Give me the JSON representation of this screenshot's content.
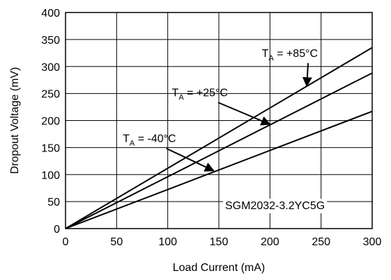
{
  "chart_data": {
    "type": "line",
    "xlabel": "Load Current (mA)",
    "ylabel": "Dropout Voltage (mV)",
    "xlim": [
      0,
      300
    ],
    "ylim": [
      0,
      400
    ],
    "xticks": [
      0,
      50,
      100,
      150,
      200,
      250,
      300
    ],
    "yticks": [
      0,
      50,
      100,
      150,
      200,
      250,
      300,
      350,
      400
    ],
    "grid": true,
    "annotation": "SGM2032-3.2YC5G",
    "series": [
      {
        "name_prefix": "T",
        "name_sub": "A",
        "name_suffix": " = +85°C",
        "x": [
          0,
          300
        ],
        "y": [
          0,
          335
        ],
        "label_x": 192,
        "label_y": 318,
        "arrow_x": 236,
        "arrow_y": 264
      },
      {
        "name_prefix": "T",
        "name_sub": "A",
        "name_suffix": " = +25°C",
        "x": [
          0,
          300
        ],
        "y": [
          0,
          288
        ],
        "label_x": 104,
        "label_y": 245,
        "arrow_x": 200,
        "arrow_y": 193
      },
      {
        "name_prefix": "T",
        "name_sub": "A",
        "name_suffix": " = -40°C",
        "x": [
          0,
          300
        ],
        "y": [
          0,
          217
        ],
        "label_x": 56,
        "label_y": 160,
        "arrow_x": 145,
        "arrow_y": 107
      }
    ],
    "colors": {
      "line": "#000000",
      "grid": "#000000",
      "background": "#ffffff"
    }
  }
}
